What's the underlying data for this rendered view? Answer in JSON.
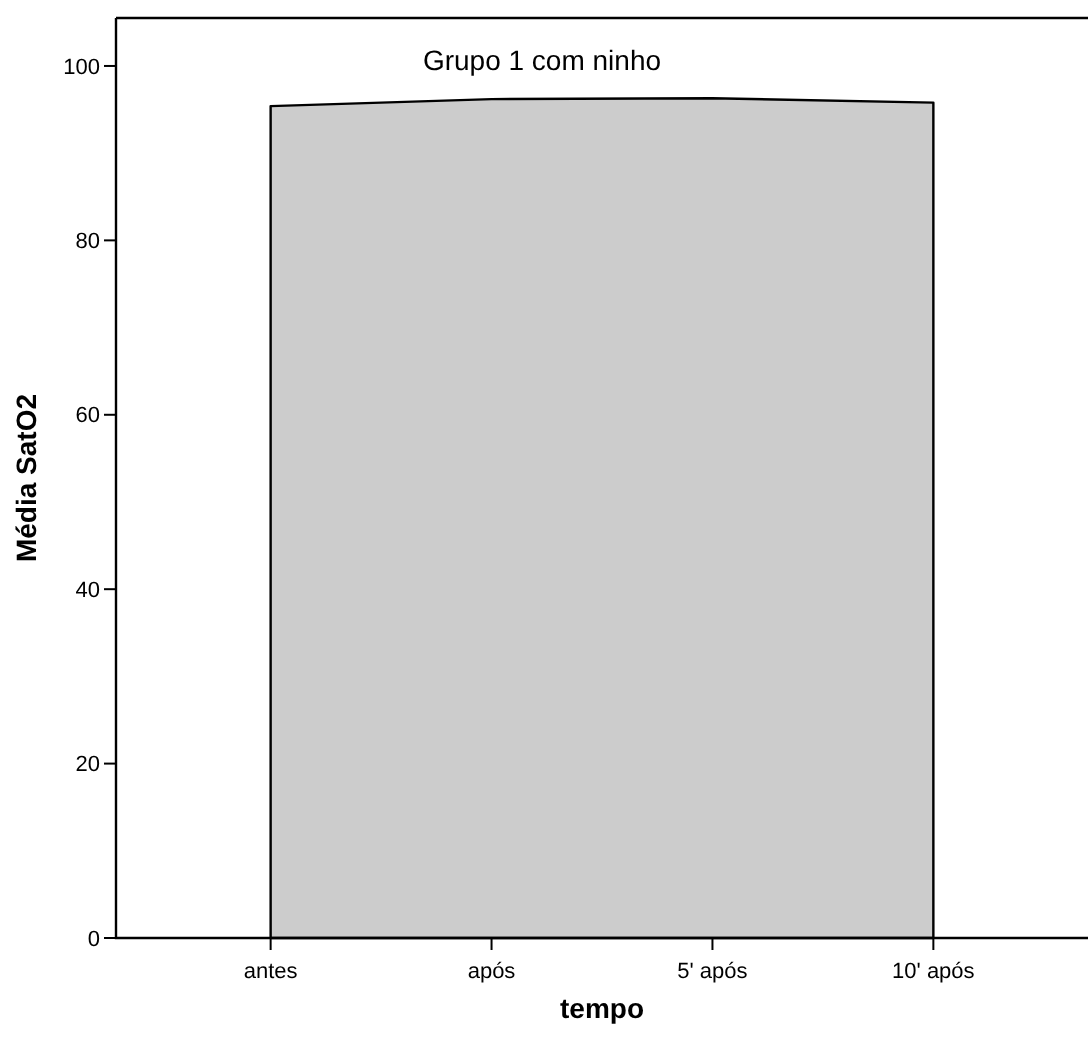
{
  "chart_data": {
    "type": "area",
    "title": "Grupo 1 com ninho",
    "xlabel": "tempo",
    "ylabel": "Média SatO2",
    "categories": [
      "antes",
      "após",
      "5' após",
      "10' após"
    ],
    "series": [
      {
        "color": "#cccccc",
        "values": [
          95.4,
          96.2,
          96.3,
          95.8
        ]
      }
    ],
    "ylim": [
      0,
      105.5
    ],
    "yticks": [
      0,
      20,
      40,
      60,
      80,
      100
    ]
  }
}
